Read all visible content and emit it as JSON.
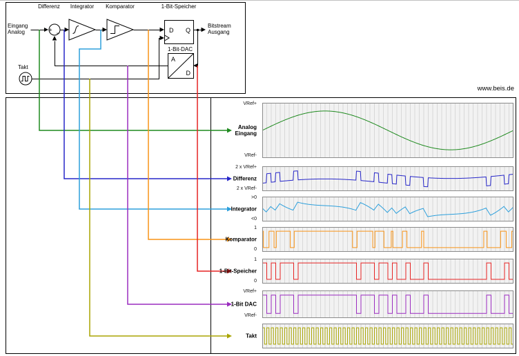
{
  "watermark": "www.beis.de",
  "block_diagram": {
    "stage_labels": {
      "differenz": "Differenz",
      "integrator": "Integrator",
      "komparator": "Komparator",
      "speicher": "1-Bit-Speicher",
      "dac": "1-Bit-DAC",
      "takt": "Takt"
    },
    "input_label_line1": "Eingang",
    "input_label_line2": "Analog",
    "output_label_line1": "Bitstream",
    "output_label_line2": "Ausgang",
    "flipflop": {
      "d": "D",
      "q": "Q"
    },
    "dac_box": {
      "analog": "A",
      "digital": "D"
    },
    "summer": {
      "plus": "+",
      "minus": "−"
    }
  },
  "chart_data": {
    "type": "line",
    "title": "",
    "grid": true,
    "clock_periods": 56,
    "input_signal": {
      "shape": "sine",
      "cycles": 1,
      "amplitude": 0.95,
      "unit": "VRef"
    },
    "sim": {
      "integrator_gain": 0.9,
      "substeps": 8,
      "initial_bit": 1
    },
    "series": [
      {
        "id": "analog",
        "name_lines": [
          "Analog",
          "Eingang"
        ],
        "top_label": "VRef+",
        "bottom_label": "VRef-",
        "color": "#1f8a1f"
      },
      {
        "id": "differenz",
        "name_lines": [
          "Differenz"
        ],
        "top_label": "2 x VRef+",
        "bottom_label": "2 x VRef-",
        "color": "#2626c9"
      },
      {
        "id": "integrator",
        "name_lines": [
          "Integrator"
        ],
        "top_label": ">0",
        "bottom_label": "<0",
        "color": "#2b9fdc"
      },
      {
        "id": "komparator",
        "name_lines": [
          "Komparator"
        ],
        "top_label": "1",
        "bottom_label": "0",
        "color": "#f99417"
      },
      {
        "id": "speicher",
        "name_lines": [
          "1-Bit-Speicher"
        ],
        "top_label": "1",
        "bottom_label": "0",
        "color": "#e62222"
      },
      {
        "id": "dac",
        "name_lines": [
          "1-Bit DAC"
        ],
        "top_label": "VRef+",
        "bottom_label": "VRef-",
        "color": "#9a2bbf"
      },
      {
        "id": "takt",
        "name_lines": [
          "Takt"
        ],
        "top_label": "",
        "bottom_label": "",
        "color": "#a8a400"
      }
    ]
  }
}
